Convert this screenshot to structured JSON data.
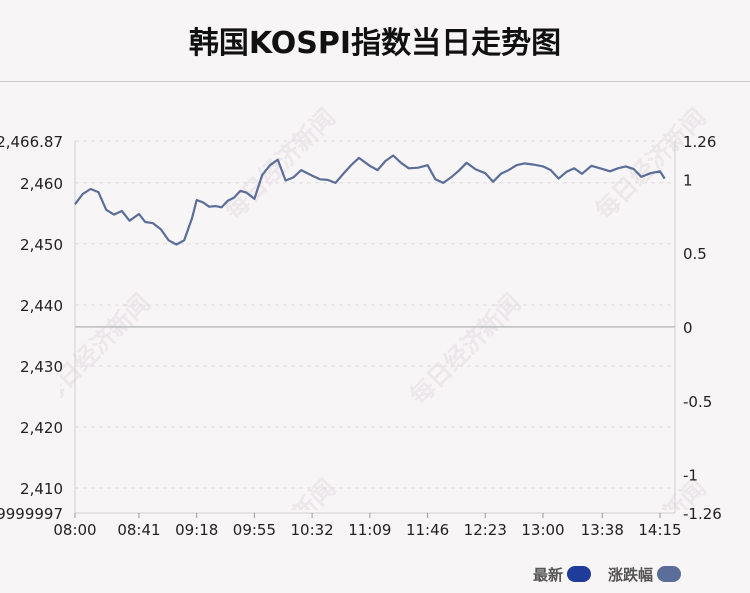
{
  "header": {
    "title": "韩国KOSPI指数当日走势图"
  },
  "legend": {
    "latest_label": "最新",
    "change_label": "涨跌幅",
    "latest_color": "#1f3c9b",
    "change_color": "#5a6e99"
  },
  "chart_data": {
    "type": "line",
    "title": "韩国KOSPI指数当日走势图",
    "xlabel": "",
    "ylabel": "",
    "x_ticks": [
      "08:00",
      "08:41",
      "09:18",
      "09:55",
      "10:32",
      "11:09",
      "11:46",
      "12:23",
      "13:00",
      "13:38",
      "14:15"
    ],
    "y_left": {
      "ticks": [
        2466.87,
        2460,
        2450,
        2440,
        2430,
        2420,
        2410
      ],
      "tick_labels": [
        "2,466.87",
        "2,460",
        "2,450",
        "2,440",
        "2,430",
        "2,420",
        "2,410"
      ],
      "bottom_label": "9999997",
      "ylim": [
        2405.9,
        2466.87
      ]
    },
    "y_right": {
      "ticks": [
        1.26,
        1,
        0.5,
        0,
        -0.5,
        -1,
        -1.26
      ],
      "tick_labels": [
        "1.26",
        "1",
        "0.5",
        "0",
        "-0.5",
        "-1",
        "-1.26"
      ],
      "ylim": [
        -1.26,
        1.26
      ]
    },
    "baseline": 2436.4,
    "grid": true,
    "legend_position": "bottom-right",
    "line_color": "#5a6e99",
    "series": [
      {
        "name": "涨跌幅",
        "x": [
          "08:00",
          "08:05",
          "08:10",
          "08:15",
          "08:20",
          "08:25",
          "08:30",
          "08:35",
          "08:41",
          "08:45",
          "08:50",
          "08:55",
          "09:00",
          "09:05",
          "09:10",
          "09:15",
          "09:18",
          "09:22",
          "09:26",
          "09:30",
          "09:34",
          "09:38",
          "09:42",
          "09:46",
          "09:50",
          "09:55",
          "10:00",
          "10:05",
          "10:10",
          "10:15",
          "10:20",
          "10:25",
          "10:32",
          "10:37",
          "10:42",
          "10:47",
          "10:52",
          "10:57",
          "11:02",
          "11:09",
          "11:14",
          "11:19",
          "11:24",
          "11:29",
          "11:34",
          "11:40",
          "11:46",
          "11:51",
          "11:56",
          "12:01",
          "12:06",
          "12:11",
          "12:17",
          "12:23",
          "12:28",
          "12:33",
          "12:38",
          "12:43",
          "12:48",
          "12:54",
          "13:00",
          "13:05",
          "13:10",
          "13:15",
          "13:20",
          "13:25",
          "13:31",
          "13:38",
          "13:43",
          "13:48",
          "13:53",
          "13:58",
          "14:03",
          "14:09",
          "14:15",
          "14:18"
        ],
        "values": [
          2456.5,
          2458.2,
          2459.0,
          2458.5,
          2455.6,
          2454.8,
          2455.4,
          2453.8,
          2454.9,
          2453.6,
          2453.4,
          2452.4,
          2450.6,
          2449.9,
          2450.6,
          2454.2,
          2457.2,
          2456.8,
          2456.1,
          2456.2,
          2456.0,
          2457.1,
          2457.6,
          2458.7,
          2458.4,
          2457.4,
          2461.3,
          2462.9,
          2463.8,
          2460.4,
          2460.9,
          2462.1,
          2461.2,
          2460.6,
          2460.5,
          2460.0,
          2461.5,
          2462.9,
          2464.1,
          2462.8,
          2462.1,
          2463.6,
          2464.5,
          2463.3,
          2462.4,
          2462.5,
          2462.9,
          2460.6,
          2460.0,
          2460.9,
          2462.0,
          2463.3,
          2462.2,
          2461.6,
          2460.2,
          2461.5,
          2462.1,
          2462.9,
          2463.2,
          2463.0,
          2462.7,
          2462.1,
          2460.7,
          2461.8,
          2462.4,
          2461.5,
          2462.8,
          2462.3,
          2461.9,
          2462.4,
          2462.7,
          2462.3,
          2461.0,
          2461.6,
          2461.9,
          2460.7
        ]
      }
    ]
  }
}
